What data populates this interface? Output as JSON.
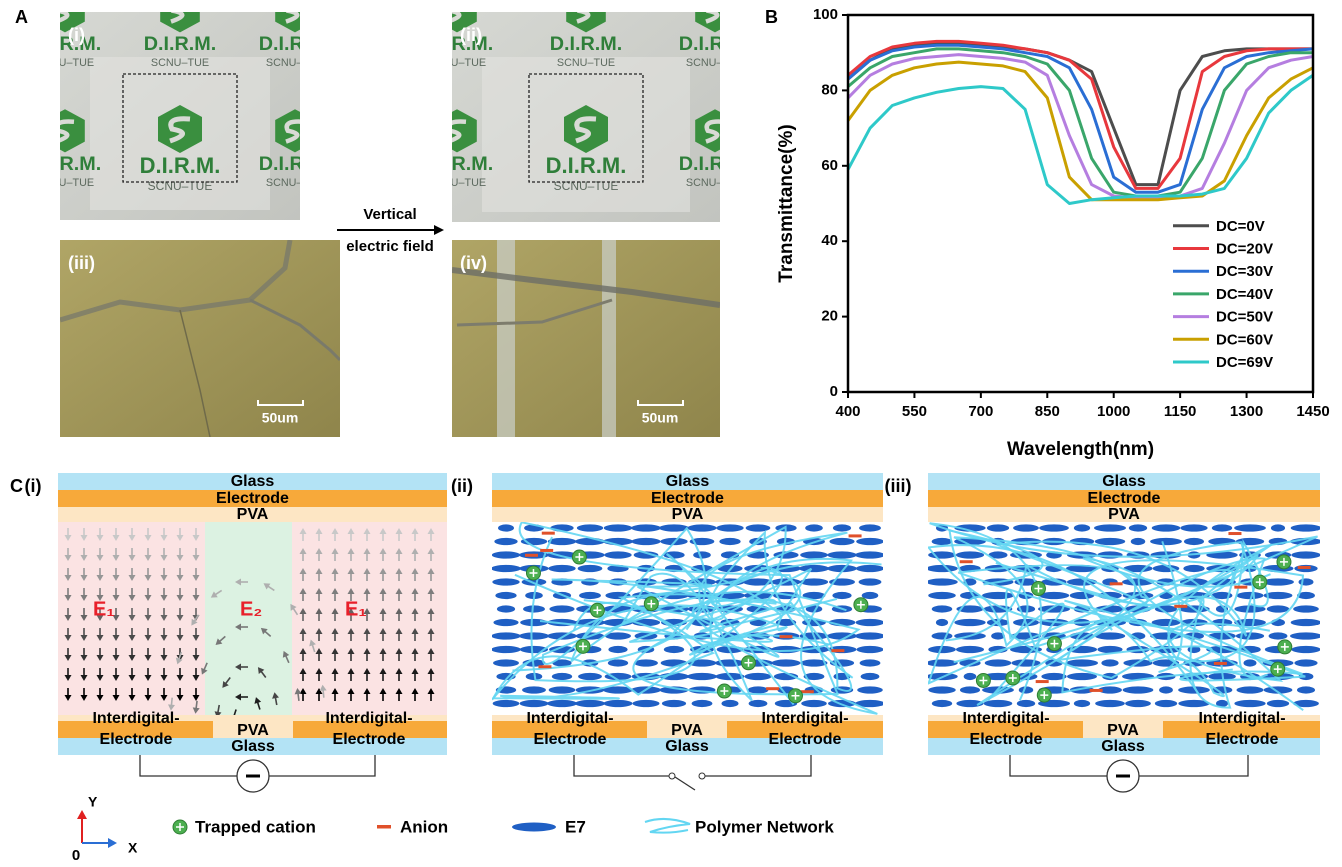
{
  "panel_a": {
    "label": "A",
    "images": [
      {
        "label": "(i)"
      },
      {
        "label": "(ii)"
      },
      {
        "label": "(iii)"
      },
      {
        "label": "(iv)"
      }
    ],
    "logo_title": "D.I.R.M.",
    "logo_sub": "SCNU–TUE",
    "scale_bar": "50um",
    "arrow_text": [
      "Vertical",
      "electric field"
    ]
  },
  "panel_b": {
    "label": "B"
  },
  "chart_data": {
    "type": "line",
    "xlabel": "Wavelength(nm)",
    "ylabel": "Transmittance(%)",
    "x": [
      400,
      450,
      500,
      550,
      600,
      650,
      700,
      750,
      800,
      850,
      900,
      950,
      1000,
      1050,
      1100,
      1150,
      1200,
      1250,
      1300,
      1350,
      1400,
      1450
    ],
    "series": [
      {
        "name": "DC=0V",
        "color": "#4d4d4d",
        "values": [
          83,
          88,
          91,
          92,
          92.5,
          92.5,
          92,
          91.5,
          91,
          90,
          88,
          85,
          70,
          55,
          55,
          80,
          89,
          90.5,
          91,
          91,
          91,
          91
        ]
      },
      {
        "name": "DC=20V",
        "color": "#e8383d",
        "values": [
          84,
          89,
          91.5,
          92.5,
          93,
          93,
          92.5,
          92,
          91,
          90,
          88,
          83,
          65,
          54,
          54,
          62,
          85,
          89,
          90.5,
          91,
          91,
          91
        ]
      },
      {
        "name": "DC=30V",
        "color": "#2a6ed4",
        "values": [
          83,
          88,
          90.5,
          91.5,
          92,
          92,
          91.5,
          91,
          90,
          89,
          86,
          75,
          57,
          53,
          53,
          55,
          75,
          86,
          89,
          90,
          90.5,
          91
        ]
      },
      {
        "name": "DC=40V",
        "color": "#3aa66a",
        "values": [
          81,
          86,
          89,
          90,
          91,
          91,
          90.5,
          90,
          89,
          87,
          80,
          62,
          53,
          52,
          52,
          53,
          62,
          80,
          87,
          89,
          90,
          90
        ]
      },
      {
        "name": "DC=50V",
        "color": "#b57ee0",
        "values": [
          78,
          84,
          87,
          88.5,
          89,
          89.5,
          89,
          88.5,
          87.5,
          84,
          68,
          55,
          52,
          51.5,
          51.5,
          52,
          54,
          66,
          80,
          86,
          88,
          89
        ]
      },
      {
        "name": "DC=60V",
        "color": "#c9a000",
        "values": [
          72,
          80,
          84,
          86,
          87,
          87.5,
          87,
          86.5,
          85,
          78,
          57,
          51,
          51,
          51,
          51,
          51.5,
          52,
          56,
          68,
          78,
          83,
          86
        ]
      },
      {
        "name": "DC=69V",
        "color": "#2ec9c9",
        "values": [
          59,
          70,
          76,
          78,
          79.5,
          80.5,
          81,
          80.5,
          75,
          55,
          50,
          51,
          51.5,
          52,
          52,
          52,
          52.5,
          54,
          62,
          74,
          80,
          84
        ]
      }
    ],
    "xlim": [
      400,
      1450
    ],
    "xticks": [
      400,
      550,
      700,
      850,
      1000,
      1150,
      1300,
      1450
    ],
    "ylim": [
      0,
      100
    ],
    "yticks": [
      0,
      20,
      40,
      60,
      80,
      100
    ],
    "legend": "lower right",
    "grid": false
  },
  "panel_c": {
    "label": "C",
    "diagrams": [
      {
        "label": "(i)"
      },
      {
        "label": "(ii)"
      },
      {
        "label": "(iii)"
      }
    ],
    "layers": {
      "glass": "Glass",
      "electrode": "Electrode",
      "pva": "PVA",
      "interdigital": [
        "Interdigital-",
        "Electrode"
      ]
    },
    "fields": [
      "E₁",
      "E₂"
    ],
    "legend": {
      "cation": "Trapped cation",
      "anion": "Anion",
      "e7": "E7",
      "network": "Polymer Network"
    },
    "axes": {
      "y": "Y",
      "x": "X",
      "origin": "0"
    }
  }
}
